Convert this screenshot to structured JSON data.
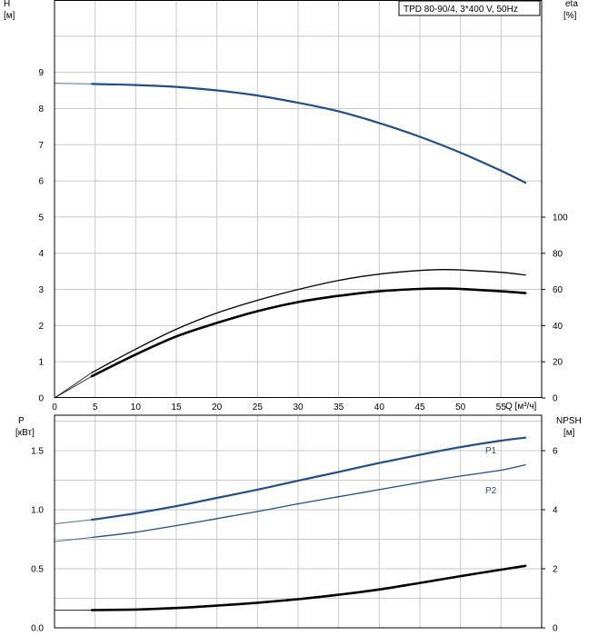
{
  "chart_data": [
    {
      "type": "line",
      "title": "TPD 80-90/4, 3*400 V, 50Hz",
      "xlabel": "Q [м³/ч]",
      "x_ticks": [
        0,
        5,
        10,
        15,
        20,
        25,
        30,
        35,
        40,
        45,
        50,
        55
      ],
      "xlim": [
        0,
        60
      ],
      "y_left": {
        "label_line1": "H",
        "label_line2": "[м]",
        "ticks": [
          0,
          1,
          2,
          3,
          4,
          5,
          6,
          7,
          8,
          9
        ],
        "ylim": [
          0,
          11
        ]
      },
      "y_right": {
        "label_line1": "eta",
        "label_line2": "[%]",
        "ticks": [
          0,
          20,
          40,
          60,
          80,
          100
        ],
        "ylim": [
          0,
          100
        ]
      },
      "grid": true,
      "series": [
        {
          "axis": "left",
          "color": "#1f4e89",
          "values": [
            [
              0,
              8.7
            ],
            [
              4.6,
              8.68
            ],
            [
              10,
              8.65
            ],
            [
              15,
              8.6
            ],
            [
              20,
              8.5
            ],
            [
              25,
              8.36
            ],
            [
              30,
              8.16
            ],
            [
              35,
              7.92
            ],
            [
              40,
              7.6
            ],
            [
              45,
              7.22
            ],
            [
              50,
              6.78
            ],
            [
              55,
              6.28
            ],
            [
              58,
              5.95
            ]
          ]
        },
        {
          "axis": "right",
          "color": "#000000",
          "values": [
            [
              0,
              0
            ],
            [
              4.6,
              14
            ],
            [
              10,
              27
            ],
            [
              15,
              38
            ],
            [
              20,
              47
            ],
            [
              25,
              54
            ],
            [
              30,
              60
            ],
            [
              35,
              65
            ],
            [
              40,
              68.5
            ],
            [
              45,
              70.5
            ],
            [
              48,
              71
            ],
            [
              50,
              70.8
            ],
            [
              55,
              69.5
            ],
            [
              58,
              68
            ]
          ]
        },
        {
          "axis": "right",
          "color": "#000000",
          "values": [
            [
              0,
              0
            ],
            [
              4.6,
              12
            ],
            [
              10,
              24
            ],
            [
              15,
              34
            ],
            [
              20,
              41.5
            ],
            [
              25,
              48
            ],
            [
              30,
              53
            ],
            [
              35,
              56.5
            ],
            [
              40,
              59
            ],
            [
              45,
              60.3
            ],
            [
              48,
              60.5
            ],
            [
              50,
              60.3
            ],
            [
              55,
              59
            ],
            [
              58,
              58
            ]
          ]
        }
      ]
    },
    {
      "type": "line",
      "title": "",
      "xlabel": "",
      "xlim": [
        0,
        60
      ],
      "y_left": {
        "label_line1": "P",
        "label_line2": "[кВт]",
        "ticks": [
          "0.0",
          "0.5",
          "1.0",
          "1.5"
        ],
        "ylim": [
          0,
          1.8
        ]
      },
      "y_right": {
        "label_line1": "NPSH",
        "label_line2": "[м]",
        "ticks": [
          0,
          2,
          4,
          6
        ],
        "ylim": [
          0,
          7.2
        ]
      },
      "grid": true,
      "series": [
        {
          "name": "P1",
          "axis": "left",
          "color": "#1f4e89",
          "values": [
            [
              0,
              0.88
            ],
            [
              4.6,
              0.915
            ],
            [
              10,
              0.97
            ],
            [
              15,
              1.03
            ],
            [
              20,
              1.1
            ],
            [
              25,
              1.17
            ],
            [
              30,
              1.245
            ],
            [
              35,
              1.32
            ],
            [
              40,
              1.395
            ],
            [
              45,
              1.465
            ],
            [
              50,
              1.53
            ],
            [
              55,
              1.585
            ],
            [
              58,
              1.61
            ]
          ]
        },
        {
          "name": "P2",
          "axis": "left",
          "color": "#1f4e89",
          "values": [
            [
              0,
              0.73
            ],
            [
              4.6,
              0.765
            ],
            [
              10,
              0.81
            ],
            [
              15,
              0.865
            ],
            [
              20,
              0.925
            ],
            [
              25,
              0.985
            ],
            [
              30,
              1.05
            ],
            [
              35,
              1.11
            ],
            [
              40,
              1.17
            ],
            [
              45,
              1.23
            ],
            [
              50,
              1.285
            ],
            [
              55,
              1.335
            ],
            [
              58,
              1.38
            ]
          ]
        },
        {
          "axis": "right",
          "color": "#000000",
          "values": [
            [
              0,
              0.6
            ],
            [
              4.6,
              0.6
            ],
            [
              10,
              0.62
            ],
            [
              15,
              0.67
            ],
            [
              20,
              0.75
            ],
            [
              25,
              0.85
            ],
            [
              30,
              0.97
            ],
            [
              35,
              1.12
            ],
            [
              40,
              1.3
            ],
            [
              45,
              1.52
            ],
            [
              50,
              1.75
            ],
            [
              55,
              1.97
            ],
            [
              58,
              2.1
            ]
          ]
        }
      ]
    }
  ]
}
